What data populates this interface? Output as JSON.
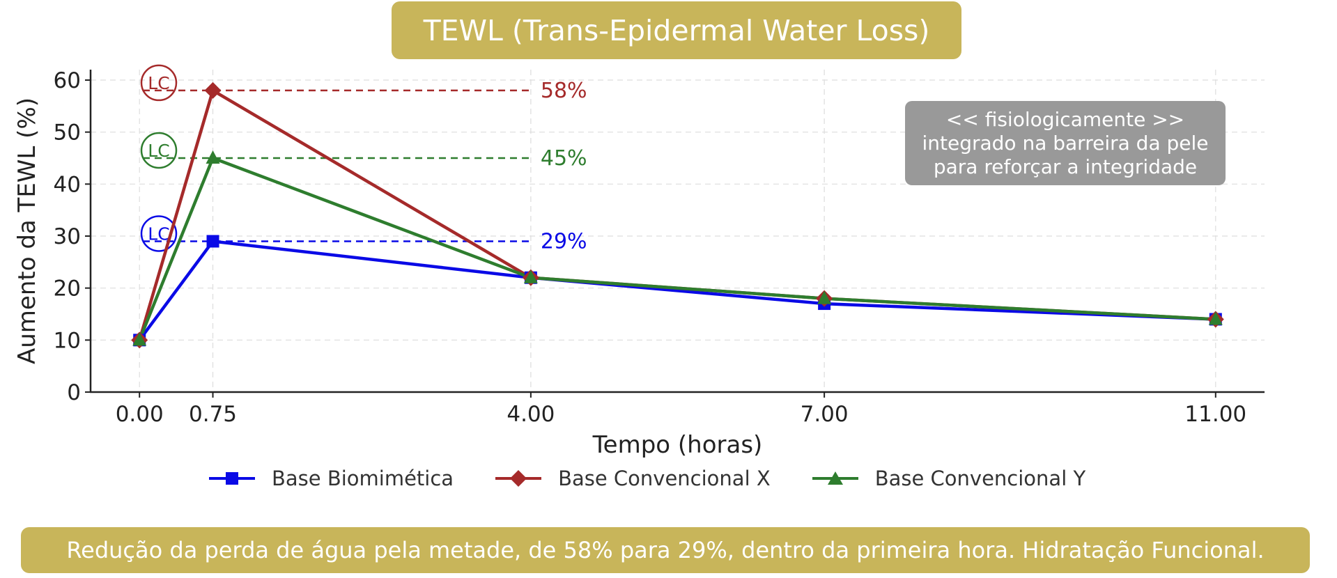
{
  "title": "TEWL (Trans-Epidermal Water Loss)",
  "footer": "Redução da perda de água pela metade, de 58% para 29%, dentro da primeira hora. Hidratação Funcional.",
  "note": {
    "lines": [
      "<< fisiologicamente >>",
      "integrado na barreira da pele",
      "para reforçar a integridade"
    ]
  },
  "chart_data": {
    "type": "line",
    "xlabel": "Tempo (horas)",
    "ylabel": "Aumento da TEWL (%)",
    "xlim": [
      -0.5,
      11.5
    ],
    "ylim": [
      0,
      60
    ],
    "x_ticks": [
      0,
      0.75,
      4,
      7,
      11
    ],
    "x_tick_labels": [
      "0.00",
      "0.75",
      "4.00",
      "7.00",
      "11.00"
    ],
    "y_ticks": [
      0,
      10,
      20,
      30,
      40,
      50,
      60
    ],
    "y_tick_labels": [
      "0",
      "10",
      "20",
      "30",
      "40",
      "50",
      "60"
    ],
    "grid": true,
    "legend_position": "bottom",
    "x": [
      0,
      0.75,
      4,
      7,
      11
    ],
    "series": [
      {
        "name": "Base Biomimética",
        "color": "#0a0ae6",
        "marker": "square",
        "values": [
          10,
          29,
          22,
          17,
          14
        ]
      },
      {
        "name": "Base Convencional X",
        "color": "#a52a2a",
        "marker": "diamond",
        "values": [
          10,
          58,
          22,
          18,
          14
        ]
      },
      {
        "name": "Base Convencional Y",
        "color": "#2e7d2e",
        "marker": "triangle",
        "values": [
          10,
          45,
          22,
          18,
          14
        ]
      }
    ],
    "annotations": [
      {
        "series": 1,
        "y": 58,
        "label": "58%",
        "badge": "LC"
      },
      {
        "series": 2,
        "y": 45,
        "label": "45%",
        "badge": "LC"
      },
      {
        "series": 0,
        "y": 29,
        "label": "29%",
        "badge": "LC"
      }
    ]
  }
}
